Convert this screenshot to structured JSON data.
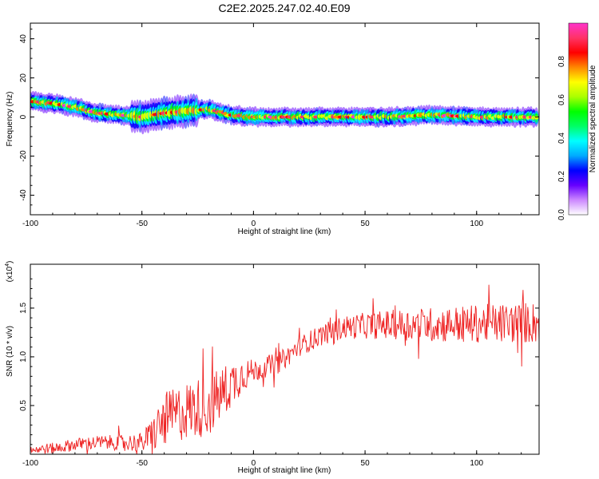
{
  "title": "C2E2.2025.247.02.40.E09",
  "chart_data": [
    {
      "type": "heatmap",
      "xlabel": "Height of straight line (km)",
      "ylabel": "Frequency (Hz)",
      "xlim": [
        -100,
        128
      ],
      "ylim": [
        -50,
        48
      ],
      "xticks": [
        "-100",
        "-50",
        "0",
        "50",
        "100"
      ],
      "yticks": [
        "-40",
        "-20",
        "0",
        "20",
        "40"
      ],
      "colorbar": {
        "label": "Normalized spectral amplitude",
        "range": [
          0,
          1
        ],
        "ticks": [
          "0.0",
          "0.2",
          "0.4",
          "0.6",
          "0.8"
        ],
        "colors": [
          "#ffffff",
          "#cc88ff",
          "#6600ff",
          "#0000ff",
          "#00aaff",
          "#00ffff",
          "#00ff66",
          "#00ff00",
          "#aaff00",
          "#ffff00",
          "#ff8800",
          "#ff0000",
          "#ff3366",
          "#ff33cc"
        ]
      },
      "ridge": {
        "x": [
          -100,
          -90,
          -80,
          -70,
          -60,
          -50,
          -40,
          -30,
          -20,
          -10,
          0,
          20,
          40,
          60,
          80,
          100,
          128
        ],
        "y": [
          8,
          7,
          5,
          2,
          1,
          0,
          2,
          3,
          4,
          1,
          0,
          0,
          0,
          0,
          1,
          0,
          0
        ]
      }
    },
    {
      "type": "line",
      "xlabel": "Height of straight line (km)",
      "ylabel": "SNR (10 * v/v)",
      "y_multiplier": "(x10",
      "y_multiplier_exp": "4",
      "xlim": [
        -100,
        128
      ],
      "ylim": [
        0,
        1.95
      ],
      "xticks": [
        "-100",
        "-50",
        "0",
        "50",
        "100"
      ],
      "yticks": [
        "0.5",
        "1.0",
        "1.5"
      ],
      "color": "#ee2222",
      "trend": {
        "x": [
          -100,
          -90,
          -80,
          -70,
          -60,
          -50,
          -45,
          -40,
          -30,
          -20,
          -15,
          -10,
          -5,
          0,
          5,
          10,
          15,
          20,
          30,
          40,
          50,
          60,
          80,
          100,
          120,
          128
        ],
        "y": [
          0.05,
          0.06,
          0.1,
          0.12,
          0.12,
          0.12,
          0.2,
          0.35,
          0.45,
          0.5,
          0.6,
          0.72,
          0.82,
          0.85,
          0.9,
          0.92,
          1.0,
          1.1,
          1.22,
          1.3,
          1.32,
          1.33,
          1.33,
          1.34,
          1.35,
          1.35
        ]
      },
      "noise": {
        "x": [
          -100,
          -60,
          -50,
          -40,
          -20,
          -10,
          0,
          20,
          40,
          80,
          128
        ],
        "amp": [
          0.05,
          0.08,
          0.1,
          0.28,
          0.32,
          0.25,
          0.12,
          0.1,
          0.12,
          0.18,
          0.22
        ]
      }
    }
  ]
}
